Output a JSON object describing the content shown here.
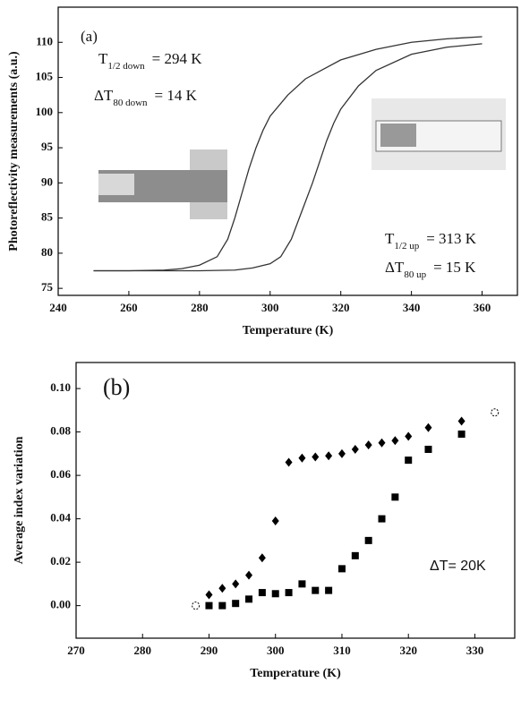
{
  "chart_data": [
    {
      "type": "line",
      "panel_label": "(a)",
      "xlabel": "Temperature (K)",
      "ylabel": "Photoreflectivity measurements (a.u.)",
      "xlim": [
        240,
        370
      ],
      "xticks": [
        240,
        260,
        280,
        300,
        320,
        340,
        360
      ],
      "ylim": [
        74,
        115
      ],
      "yticks": [
        75,
        80,
        85,
        90,
        95,
        100,
        105,
        110
      ],
      "annotations": [
        {
          "text": "T",
          "sub": "1/2 down",
          "rest": "= 294 K"
        },
        {
          "text": "ΔT",
          "sub": "80 down",
          "rest": "= 14 K"
        },
        {
          "text": "T",
          "sub": "1/2 up",
          "rest": "= 313 K"
        },
        {
          "text": "ΔT",
          "sub": "80 up",
          "rest": "= 15 K"
        }
      ],
      "series": [
        {
          "color": "#333333",
          "x": [
            250,
            260,
            270,
            275,
            280,
            285,
            288,
            290,
            292,
            294,
            296,
            298,
            300,
            305,
            310,
            320,
            330,
            340,
            350,
            360
          ],
          "values": [
            77.5,
            77.5,
            77.6,
            77.8,
            78.3,
            79.5,
            82,
            85,
            88.5,
            92,
            95,
            97.5,
            99.5,
            102.5,
            104.8,
            107.5,
            109,
            110,
            110.5,
            110.8
          ]
        },
        {
          "color": "#333333",
          "x": [
            250,
            280,
            290,
            295,
            300,
            303,
            306,
            309,
            312,
            314,
            316,
            318,
            320,
            325,
            330,
            340,
            350,
            360
          ],
          "values": [
            77.5,
            77.5,
            77.6,
            77.9,
            78.5,
            79.5,
            82,
            86,
            90,
            93,
            96,
            98.5,
            100.5,
            103.8,
            106,
            108.3,
            109.3,
            109.8
          ]
        }
      ]
    },
    {
      "type": "scatter",
      "panel_label": "(b)",
      "xlabel": "Temperature (K)",
      "ylabel": "Average index variation",
      "annotation": "ΔT= 20K",
      "xlim": [
        270,
        336
      ],
      "xticks": [
        270,
        280,
        290,
        300,
        310,
        320,
        330
      ],
      "ylim": [
        -0.015,
        0.112
      ],
      "yticks": [
        {
          "value": 0,
          "label": "0.00"
        },
        {
          "value": 0.02,
          "label": "0.02"
        },
        {
          "value": 0.04,
          "label": "0.04"
        },
        {
          "value": 0.06,
          "label": "0.06"
        },
        {
          "value": 0.08,
          "label": "0.08"
        },
        {
          "value": 0.1,
          "label": "0.10"
        }
      ],
      "series": [
        {
          "marker": "diamond",
          "color": "#000000",
          "x": [
            290,
            292,
            294,
            296,
            298,
            300,
            302,
            304,
            306,
            308,
            310,
            312,
            314,
            316,
            318,
            320,
            323,
            328
          ],
          "values": [
            0.005,
            0.008,
            0.01,
            0.014,
            0.022,
            0.039,
            0.066,
            0.068,
            0.0685,
            0.069,
            0.07,
            0.072,
            0.074,
            0.075,
            0.076,
            0.078,
            0.082,
            0.085
          ]
        },
        {
          "marker": "square",
          "color": "#000000",
          "x": [
            290,
            292,
            294,
            296,
            298,
            300,
            302,
            304,
            306,
            308,
            310,
            312,
            314,
            316,
            318,
            320,
            323,
            328
          ],
          "values": [
            0,
            0,
            0.001,
            0.003,
            0.006,
            0.0055,
            0.006,
            0.01,
            0.007,
            0.007,
            0.017,
            0.023,
            0.03,
            0.04,
            0.05,
            0.067,
            0.072,
            0.079
          ]
        },
        {
          "marker": "open-circle",
          "color": "#000000",
          "x": [
            288,
            333
          ],
          "values": [
            0,
            0.089
          ]
        }
      ]
    }
  ]
}
